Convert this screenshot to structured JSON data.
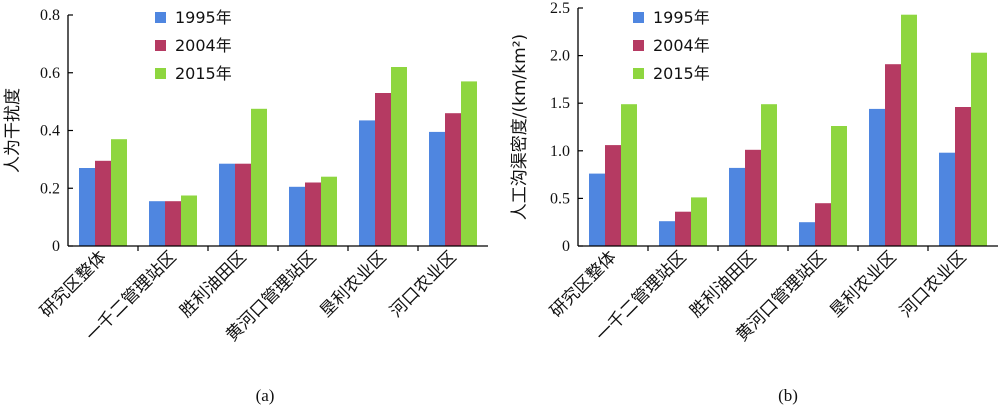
{
  "colors": {
    "1995": "#4f86e0",
    "2004": "#b53a62",
    "2015": "#8ed63f"
  },
  "chart_data": [
    {
      "type": "bar",
      "panel_label": "(a)",
      "ylabel": "人为干扰度",
      "ylim": [
        0,
        0.8
      ],
      "yticks": [
        "0",
        "0.2",
        "0.4",
        "0.6",
        "0.8"
      ],
      "ytick_values": [
        0,
        0.2,
        0.4,
        0.6,
        0.8
      ],
      "categories": [
        "研究区整体",
        "一千二管理站区",
        "胜利油田区",
        "黄河口管理站区",
        "垦利农业区",
        "河口农业区"
      ],
      "legend_position": "top-center",
      "series": [
        {
          "name": "1995年",
          "values": [
            0.27,
            0.155,
            0.285,
            0.205,
            0.435,
            0.395
          ]
        },
        {
          "name": "2004年",
          "values": [
            0.295,
            0.155,
            0.285,
            0.22,
            0.53,
            0.46
          ]
        },
        {
          "name": "2015年",
          "values": [
            0.37,
            0.175,
            0.475,
            0.24,
            0.62,
            0.57
          ]
        }
      ]
    },
    {
      "type": "bar",
      "panel_label": "(b)",
      "ylabel": "人工沟渠密度/(km/km²)",
      "ylim": [
        0,
        2.5
      ],
      "yticks": [
        "0",
        "0.5",
        "1.0",
        "1.5",
        "2.0",
        "2.5"
      ],
      "ytick_values": [
        0,
        0.5,
        1.0,
        1.5,
        2.0,
        2.5
      ],
      "categories": [
        "研究区整体",
        "一千二管理站区",
        "胜利油田区",
        "黄河口管理站区",
        "垦利农业区",
        "河口农业区"
      ],
      "legend_position": "top-center",
      "series": [
        {
          "name": "1995年",
          "values": [
            0.76,
            0.26,
            0.82,
            0.25,
            1.44,
            0.98
          ]
        },
        {
          "name": "2004年",
          "values": [
            1.06,
            0.36,
            1.01,
            0.45,
            1.91,
            1.46
          ]
        },
        {
          "name": "2015年",
          "values": [
            1.49,
            0.51,
            1.49,
            1.26,
            2.43,
            2.03
          ]
        }
      ]
    }
  ]
}
